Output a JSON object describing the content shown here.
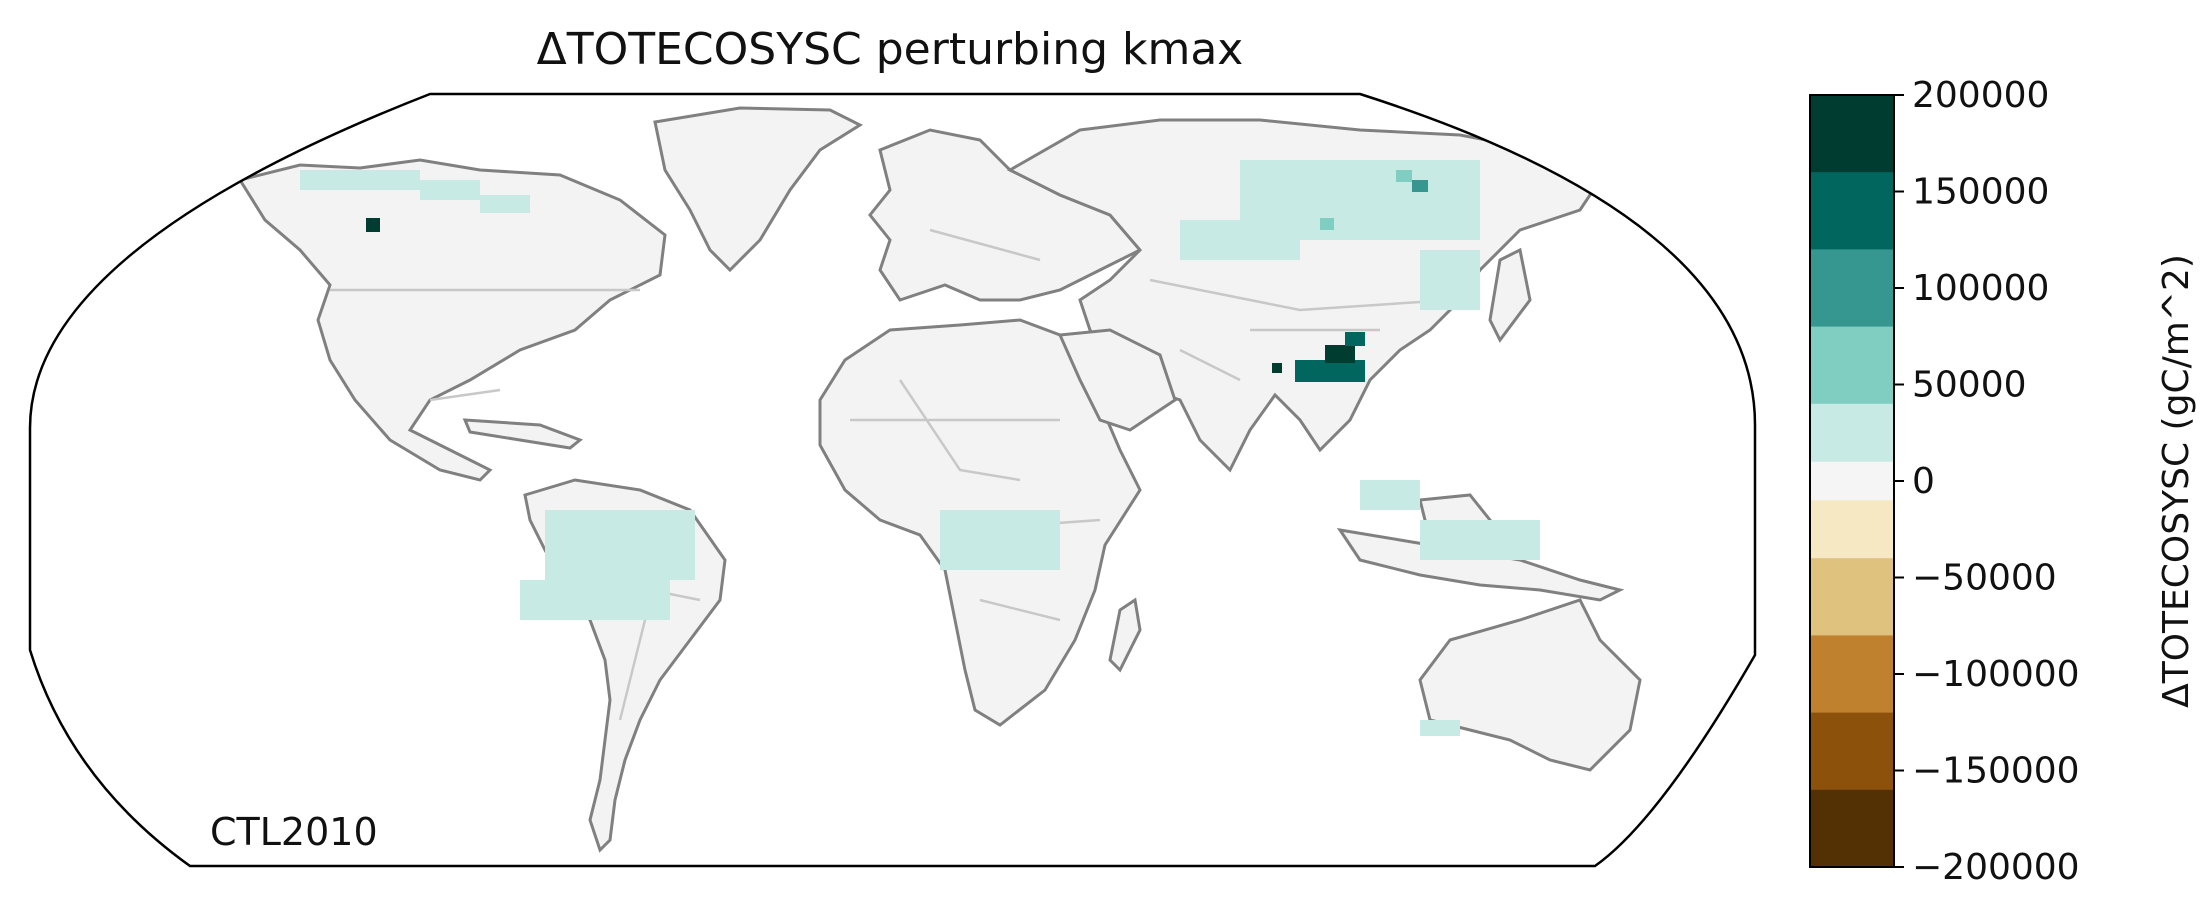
{
  "title": "ΔTOTECOSYSC perturbing kmax",
  "scenario_label": "CTL2010",
  "colorbar": {
    "label": "ΔTOTECOSYSC (gC/m^2)",
    "min": -200000,
    "max": 200000,
    "ticks": [
      {
        "value": 200000,
        "label": "200000"
      },
      {
        "value": 150000,
        "label": "150000"
      },
      {
        "value": 100000,
        "label": "100000"
      },
      {
        "value": 50000,
        "label": "50000"
      },
      {
        "value": 0,
        "label": "0"
      },
      {
        "value": -50000,
        "label": "−50000"
      },
      {
        "value": -100000,
        "label": "−100000"
      },
      {
        "value": -150000,
        "label": "−150000"
      },
      {
        "value": -200000,
        "label": "−200000"
      }
    ],
    "bins": [
      {
        "lo": 160000,
        "hi": 200000,
        "color": "#003c30"
      },
      {
        "lo": 120000,
        "hi": 160000,
        "color": "#01665e"
      },
      {
        "lo": 80000,
        "hi": 120000,
        "color": "#35978f"
      },
      {
        "lo": 40000,
        "hi": 80000,
        "color": "#80cdc1"
      },
      {
        "lo": 10000,
        "hi": 40000,
        "color": "#c7eae5"
      },
      {
        "lo": -10000,
        "hi": 10000,
        "color": "#f5f5f5"
      },
      {
        "lo": -40000,
        "hi": -10000,
        "color": "#f6e8c3"
      },
      {
        "lo": -80000,
        "hi": -40000,
        "color": "#dfc27d"
      },
      {
        "lo": -120000,
        "hi": -80000,
        "color": "#bf812d"
      },
      {
        "lo": -160000,
        "hi": -120000,
        "color": "#8c510a"
      },
      {
        "lo": -200000,
        "hi": -160000,
        "color": "#543005"
      }
    ]
  },
  "colors": {
    "land_neutral": "#f3f3f3",
    "coastline": "#808080",
    "borders": "#c8c8c8",
    "frame": "#000000"
  }
}
